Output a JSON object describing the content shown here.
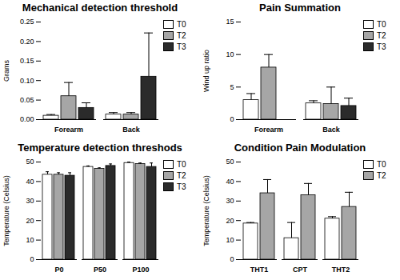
{
  "chart_data": [
    {
      "type": "bar",
      "title": "Mechanical detection threshold",
      "y_label": "Grams",
      "categories": [
        "Forearm",
        "Back"
      ],
      "series": [
        {
          "name": "T0",
          "color": "#ffffff",
          "values": [
            0.01,
            0.013
          ],
          "errors": [
            0.003,
            0.005
          ]
        },
        {
          "name": "T2",
          "color": "#a6a6a6",
          "values": [
            0.06,
            0.013
          ],
          "errors": [
            0.035,
            0.005
          ]
        },
        {
          "name": "T3",
          "color": "#2b2b2b",
          "values": [
            0.03,
            0.11
          ],
          "errors": [
            0.013,
            0.112
          ]
        }
      ],
      "ylim": [
        0,
        0.25
      ],
      "yticks": [
        {
          "value": 0,
          "label": "0.00"
        },
        0.05,
        {
          "value": 0.1,
          "label": "0.10"
        },
        0.15,
        {
          "value": 0.2,
          "label": "0.20"
        },
        0.25
      ]
    },
    {
      "type": "bar",
      "title": "Pain Summation",
      "y_label": "Wind up ratio",
      "categories": [
        "Forearm",
        "Back"
      ],
      "series": [
        {
          "name": "T0",
          "color": "#ffffff",
          "values": [
            3,
            2.5
          ],
          "errors": [
            1,
            0.4
          ]
        },
        {
          "name": "T2",
          "color": "#a6a6a6",
          "values": [
            8,
            2.4
          ],
          "errors": [
            2,
            2.6
          ]
        },
        {
          "name": "T3",
          "color": "#2b2b2b",
          "values": [
            null,
            2.1
          ],
          "errors": [
            null,
            1.2
          ]
        }
      ],
      "ylim": [
        0,
        15
      ],
      "yticks": [
        0,
        5,
        10,
        15
      ]
    },
    {
      "type": "bar",
      "title": "Temperature detection threshods",
      "y_label": "Temperature (Celsius)",
      "categories": [
        "P0",
        "P50",
        "P100"
      ],
      "series": [
        {
          "name": "T0",
          "color": "#ffffff",
          "values": [
            43.5,
            47.5,
            49.5
          ],
          "errors": [
            1.5,
            0.5,
            0.5
          ]
        },
        {
          "name": "T2",
          "color": "#a6a6a6",
          "values": [
            43.5,
            46.5,
            49
          ],
          "errors": [
            1,
            0.5,
            0.5
          ]
        },
        {
          "name": "T3",
          "color": "#2b2b2b",
          "values": [
            43,
            48,
            47.5
          ],
          "errors": [
            1.5,
            1,
            2
          ]
        }
      ],
      "ylim": [
        0,
        50
      ],
      "yticks": [
        0,
        10,
        20,
        30,
        40,
        50
      ]
    },
    {
      "type": "bar",
      "title": "Condition Pain Modulation",
      "y_label": "Temperature (Celsius)",
      "categories": [
        "THT1",
        "CPT",
        "THT2"
      ],
      "series": [
        {
          "name": "T0",
          "color": "#ffffff",
          "values": [
            18.5,
            11,
            21
          ],
          "errors": [
            0.5,
            8,
            1
          ]
        },
        {
          "name": "T2",
          "color": "#a6a6a6",
          "values": [
            34,
            33,
            27
          ],
          "errors": [
            7,
            6,
            7.5
          ]
        }
      ],
      "ylim": [
        0,
        50
      ],
      "yticks": [
        0,
        10,
        20,
        30,
        40,
        50
      ]
    }
  ]
}
